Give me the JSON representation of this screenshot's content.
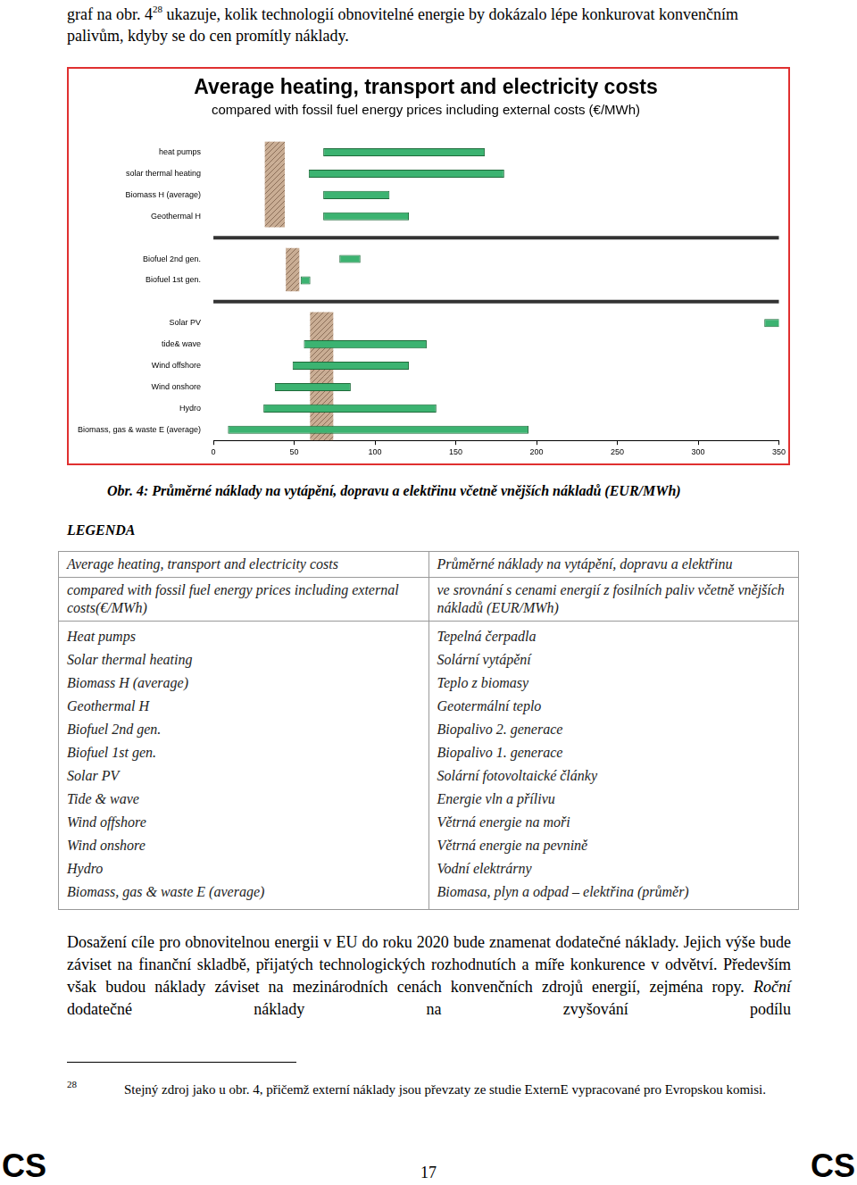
{
  "top_text": [
    {
      "text": "graf na obr. 4"
    },
    {
      "text": "28",
      "sup": true
    },
    {
      "text": " ukazuje, kolik technologií obnovitelné energie by dokázalo lépe konkurovat konvenčním palivům, kdyby se do cen promítly náklady."
    }
  ],
  "chart_data": {
    "type": "bar",
    "orientation": "horizontal",
    "title": "Average heating, transport and electricity costs",
    "subtitle": "compared with fossil fuel energy prices including external costs (€/MWh)",
    "categories": [
      "heat pumps",
      "solar thermal heating",
      "Biomass H (average)",
      "Geothermal H",
      null,
      "Biofuel 2nd gen.",
      "Biofuel 1st gen.",
      null,
      "Solar PV",
      "tide& wave",
      "Wind offshore",
      "Wind onshore",
      "Hydro",
      "Biomass, gas & waste E (average)"
    ],
    "series": [
      {
        "color": "#c9ad94",
        "values": [
          [
            32,
            44
          ],
          [
            32,
            44
          ],
          [
            32,
            44
          ],
          [
            32,
            44
          ],
          null,
          [
            45,
            53
          ],
          [
            45,
            53
          ],
          null,
          [
            60,
            74
          ],
          [
            60,
            74
          ],
          [
            60,
            74
          ],
          [
            60,
            74
          ],
          [
            60,
            74
          ],
          [
            60,
            74
          ]
        ]
      },
      {
        "color": "#3cb371",
        "values": [
          [
            68,
            168
          ],
          [
            59,
            180
          ],
          [
            68,
            109
          ],
          [
            68,
            121
          ],
          null,
          [
            78,
            91
          ],
          [
            54,
            60
          ],
          null,
          [
            341,
            360
          ],
          [
            56,
            132
          ],
          [
            49,
            121
          ],
          [
            38,
            85
          ],
          [
            31,
            138
          ],
          [
            9,
            195
          ]
        ]
      }
    ],
    "xlim": [
      0,
      350
    ],
    "xticks": [
      0,
      50,
      100,
      150,
      200,
      250,
      300,
      350
    ],
    "grid": false
  },
  "caption": "Obr. 4: Průměrné náklady na vytápění, dopravu a elektřinu včetně vnějších nákladů (EUR/MWh)",
  "legend_title": "LEGENDA",
  "legend_table": {
    "rows": [
      [
        "Average heating, transport and electricity costs",
        "Průměrné náklady na vytápění, dopravu a elektřinu"
      ],
      [
        "compared with fossil fuel energy prices including external costs(€/MWh)",
        "ve srovnání s cenami energií z fosilních paliv včetně vnějších nákladů (EUR/MWh)"
      ]
    ],
    "items": [
      [
        "Heat pumps",
        "Tepelná čerpadla"
      ],
      [
        "Solar thermal heating",
        "Solární vytápění"
      ],
      [
        "Biomass H (average)",
        "Teplo z biomasy"
      ],
      [
        "Geothermal H",
        "Geotermální teplo"
      ],
      [
        "Biofuel 2nd gen.",
        "Biopalivo 2. generace"
      ],
      [
        "Biofuel 1st gen.",
        "Biopalivo 1. generace"
      ],
      [
        "Solar PV",
        "Solární fotovoltaické články"
      ],
      [
        "Tide & wave",
        "Energie vln a přílivu"
      ],
      [
        "Wind offshore",
        "Větrná energie na moři"
      ],
      [
        "Wind onshore",
        "Větrná energie na pevnině"
      ],
      [
        "Hydro",
        "Vodní elektrárny"
      ],
      [
        "Biomass, gas & waste E (average)",
        "Biomasa, plyn a odpad – elektřina (průměr)"
      ]
    ]
  },
  "paragraph": [
    {
      "text": "Dosažení cíle pro obnovitelnou energii v EU do roku 2020 bude znamenat dodatečné náklady. Jejich výše bude záviset na finanční skladbě, přijatých technologických rozhodnutích a míře konkurence v odvětví. Především však budou náklady záviset na mezinárodních cenách konvenčních zdrojů energií, zejména ropy. "
    },
    {
      "text": "Roční",
      "italic": true
    },
    {
      "text": " dodatečné náklady na zvyšování podílu"
    }
  ],
  "footnote": {
    "number": "28",
    "text": "Stejný zdroj jako u obr. 4, přičemž externí náklady jsou převzaty ze studie ExternE vypracované pro Evropskou komisi."
  },
  "page_number": "17",
  "corner_marks": [
    "CS",
    "CS"
  ]
}
